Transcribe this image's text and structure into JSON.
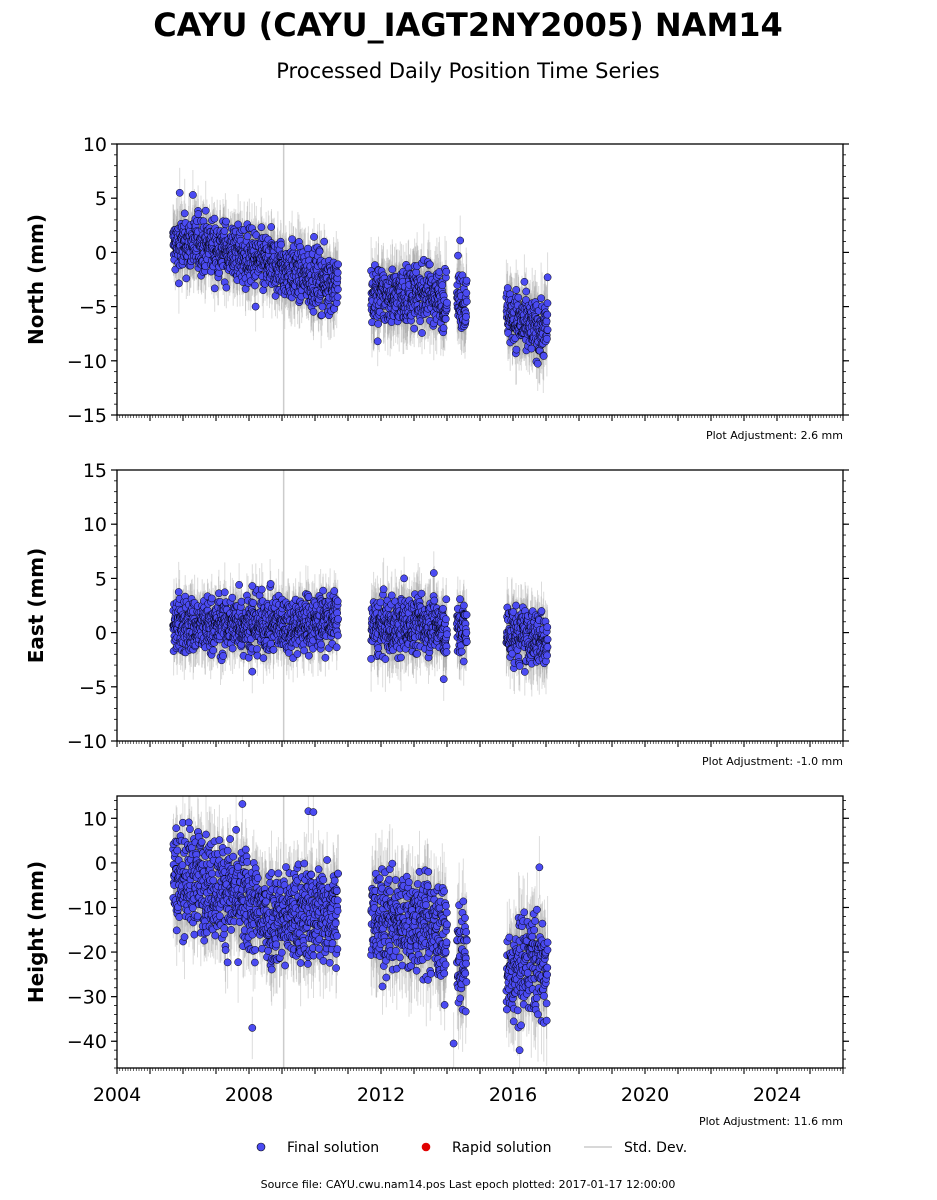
{
  "title": "CAYU (CAYU_IAGT2NY2005) NAM14",
  "subtitle": "Processed Daily Position Time Series",
  "footer": "Source file: CAYU.cwu.nam14.pos  Last epoch plotted: 2017-01-17 12:00:00",
  "legend": [
    {
      "label": "Final solution",
      "color": "#4b4bf2",
      "shape": "dot"
    },
    {
      "label": "Rapid solution",
      "color": "#e00000",
      "shape": "dot"
    },
    {
      "label": "Std. Dev.",
      "color": "#cccccc",
      "shape": "line"
    }
  ],
  "colors": {
    "final": "#4b4bf2",
    "rapid": "#e00000",
    "stddev": "#cccccc",
    "edge": "#000000"
  },
  "x_axis": {
    "range": [
      2004,
      2026
    ],
    "tick_labels": [
      "2004",
      "2008",
      "2012",
      "2016",
      "2020",
      "2024"
    ]
  },
  "chart_data": [
    {
      "type": "scatter",
      "ylabel": "North (mm)",
      "ylim": [
        -15,
        10
      ],
      "yticks": [
        10,
        5,
        0,
        -5,
        -10,
        -15
      ],
      "adjustment": "Plot Adjustment: 2.6 mm",
      "segments": [
        {
          "x": [
            2005.7,
            2006.5,
            2007.5,
            2008.5,
            2009.5,
            2010.7
          ],
          "y": [
            0.5,
            0.8,
            0.0,
            -1.0,
            -2.0,
            -3.0
          ],
          "sd": 2.3
        },
        {
          "x": [
            2011.7,
            2012.5,
            2013.5,
            2014.0
          ],
          "y": [
            -4.0,
            -4.0,
            -3.8,
            -4.5
          ],
          "sd": 2.5
        },
        {
          "x": [
            2014.3,
            2014.6
          ],
          "y": [
            -4.0,
            -4.8
          ],
          "sd": 2.5
        },
        {
          "x": [
            2015.8,
            2016.5,
            2017.05
          ],
          "y": [
            -5.5,
            -7.0,
            -7.0
          ],
          "sd": 2.5
        }
      ],
      "spread": 1.3,
      "outliers": [
        {
          "x": 2005.9,
          "y": 5.5
        },
        {
          "x": 2006.3,
          "y": 5.3
        },
        {
          "x": 2014.4,
          "y": 1.1
        },
        {
          "x": 2017.05,
          "y": -2.3
        },
        {
          "x": 2008.2,
          "y": -5.0
        },
        {
          "x": 2011.9,
          "y": -8.2
        }
      ]
    },
    {
      "type": "scatter",
      "ylabel": "East (mm)",
      "ylim": [
        -10,
        15
      ],
      "yticks": [
        15,
        10,
        5,
        0,
        -5,
        -10
      ],
      "adjustment": "Plot Adjustment: -1.0 mm",
      "segments": [
        {
          "x": [
            2005.7,
            2006.5,
            2007.5,
            2008.5,
            2009.5,
            2010.7
          ],
          "y": [
            0.8,
            0.5,
            0.8,
            0.8,
            0.8,
            1.2
          ],
          "sd": 2.0
        },
        {
          "x": [
            2011.7,
            2012.5,
            2013.5,
            2014.0
          ],
          "y": [
            0.5,
            0.5,
            1.0,
            0.0
          ],
          "sd": 2.3
        },
        {
          "x": [
            2014.3,
            2014.6
          ],
          "y": [
            0.0,
            0.5
          ],
          "sd": 2.3
        },
        {
          "x": [
            2015.8,
            2016.5,
            2017.05
          ],
          "y": [
            0.0,
            -0.5,
            -0.5
          ],
          "sd": 2.3
        }
      ],
      "spread": 1.3,
      "outliers": [
        {
          "x": 2007.7,
          "y": 4.4
        },
        {
          "x": 2008.1,
          "y": 4.3
        },
        {
          "x": 2012.7,
          "y": 5.0
        },
        {
          "x": 2013.6,
          "y": 5.5
        },
        {
          "x": 2013.9,
          "y": -4.3
        },
        {
          "x": 2008.1,
          "y": -3.6
        }
      ]
    },
    {
      "type": "scatter",
      "ylabel": "Height (mm)",
      "ylim": [
        -46,
        15
      ],
      "yticks": [
        10,
        0,
        -10,
        -20,
        -30,
        -40
      ],
      "adjustment": "Plot Adjustment: 11.6 mm",
      "segments": [
        {
          "x": [
            2005.7,
            2006.5,
            2007.5,
            2008.5,
            2009.5,
            2010.7
          ],
          "y": [
            -3.0,
            -4.0,
            -7.0,
            -12.0,
            -12.0,
            -10.0
          ],
          "sd": 7.0
        },
        {
          "x": [
            2011.7,
            2012.5,
            2013.5,
            2014.0
          ],
          "y": [
            -13.0,
            -13.0,
            -14.0,
            -18.0
          ],
          "sd": 8.0
        },
        {
          "x": [
            2014.3,
            2014.6
          ],
          "y": [
            -20.0,
            -22.0
          ],
          "sd": 8.0
        },
        {
          "x": [
            2015.8,
            2016.5,
            2017.05
          ],
          "y": [
            -27.0,
            -22.0,
            -24.0
          ],
          "sd": 8.0
        }
      ],
      "spread": 5.5,
      "outliers": [
        {
          "x": 2007.8,
          "y": 13.2
        },
        {
          "x": 2009.8,
          "y": 11.6
        },
        {
          "x": 2009.95,
          "y": 11.4
        },
        {
          "x": 2008.1,
          "y": -37.0
        },
        {
          "x": 2016.2,
          "y": -42.0
        },
        {
          "x": 2014.2,
          "y": -40.5
        },
        {
          "x": 2016.8,
          "y": -1.0
        }
      ]
    }
  ]
}
